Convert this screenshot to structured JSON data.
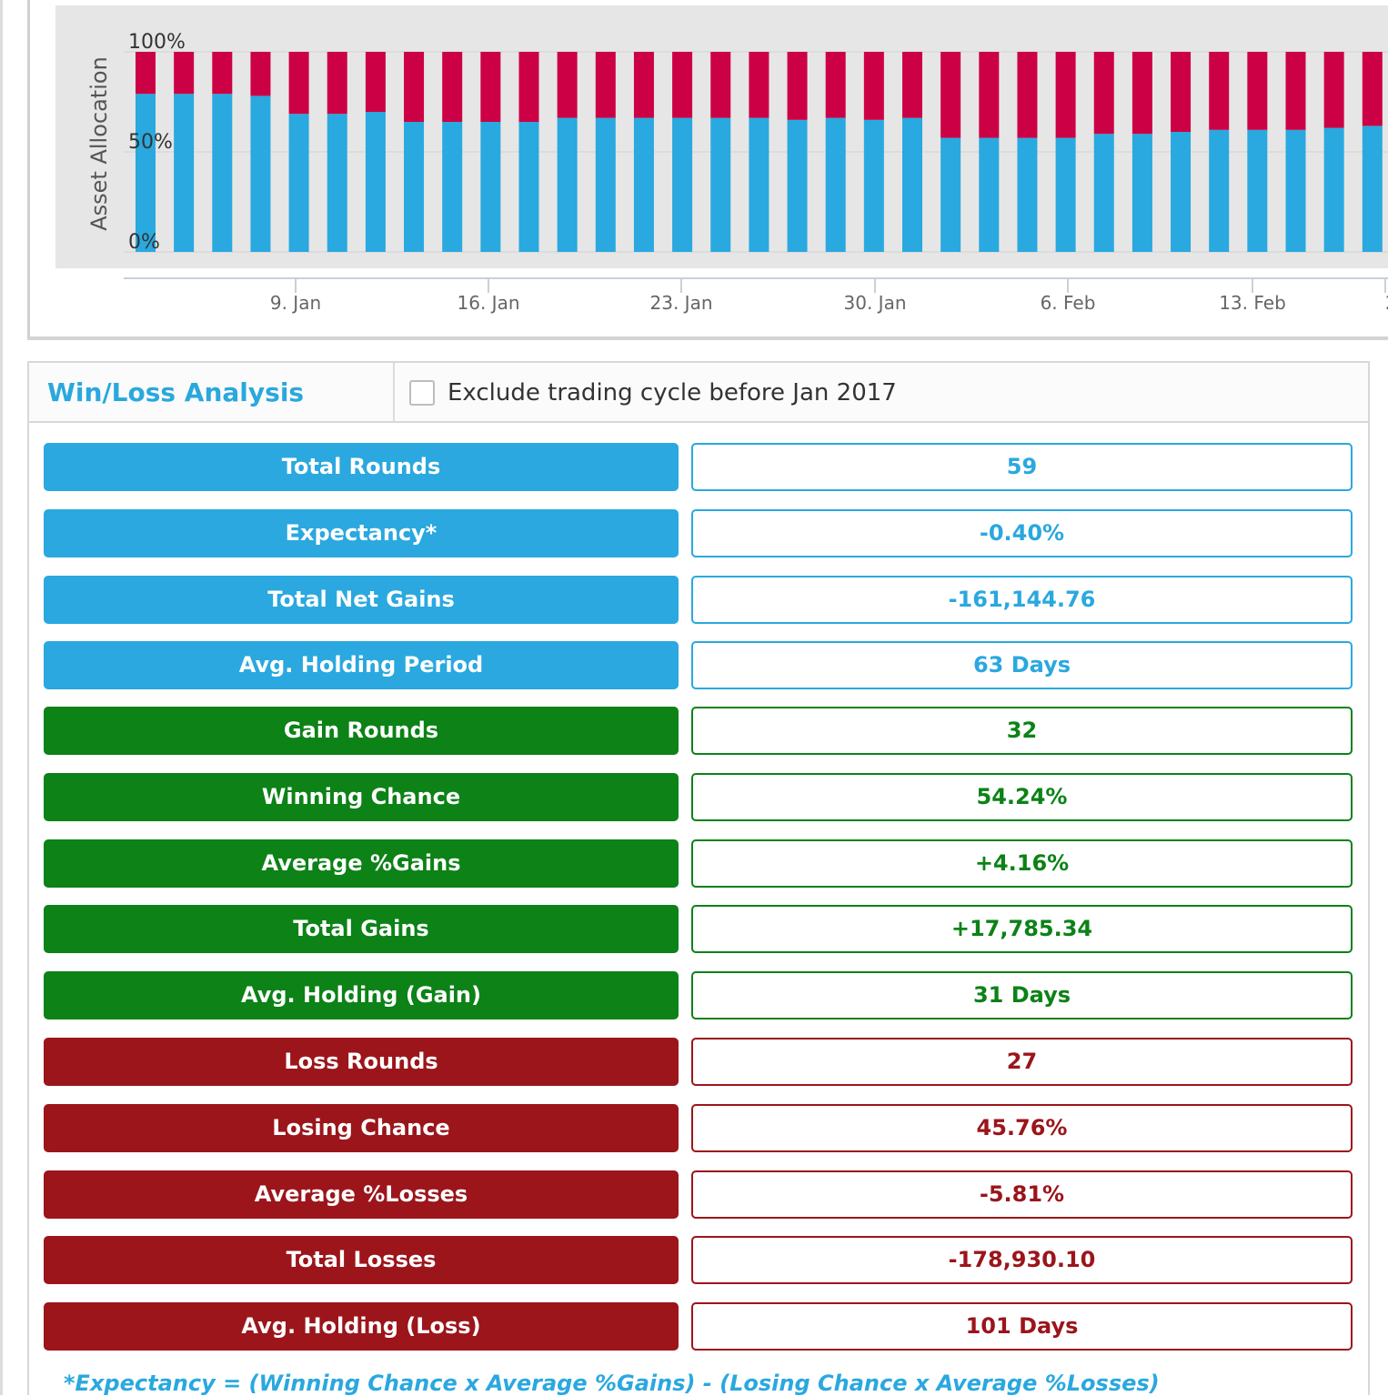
{
  "chart_data": {
    "type": "bar",
    "stacked": true,
    "ylabel": "Asset Allocation",
    "yticks": [
      "100%",
      "50%",
      "0%"
    ],
    "ylim": [
      0,
      100
    ],
    "xticks": [
      "9. Jan",
      "16. Jan",
      "23. Jan",
      "30. Jan",
      "6. Feb",
      "13. Feb",
      "2"
    ],
    "grid": true,
    "series": [
      {
        "color": "#29a9df",
        "values": [
          79,
          79,
          79,
          78,
          69,
          69,
          70,
          65,
          65,
          65,
          65,
          67,
          67,
          67,
          67,
          67,
          67,
          66,
          67,
          66,
          67,
          57,
          57,
          57,
          57,
          59,
          59,
          60,
          61,
          61,
          61,
          62,
          63
        ]
      },
      {
        "color": "#cc0044",
        "values": [
          21,
          21,
          21,
          22,
          31,
          31,
          30,
          35,
          35,
          35,
          35,
          33,
          33,
          33,
          33,
          33,
          33,
          34,
          33,
          34,
          33,
          43,
          43,
          43,
          43,
          41,
          41,
          40,
          39,
          39,
          39,
          38,
          37
        ]
      }
    ]
  },
  "winloss": {
    "title": "Win/Loss Analysis",
    "exclude_label": "Exclude trading cycle before Jan 2017",
    "exclude_checked": false,
    "rows": [
      {
        "label": "Total Rounds",
        "value": "59",
        "group": "blue"
      },
      {
        "label": "Expectancy*",
        "value": "-0.40%",
        "group": "blue"
      },
      {
        "label": "Total Net Gains",
        "value": "-161,144.76",
        "group": "blue"
      },
      {
        "label": "Avg. Holding Period",
        "value": "63 Days",
        "group": "blue"
      },
      {
        "label": "Gain Rounds",
        "value": "32",
        "group": "green"
      },
      {
        "label": "Winning Chance",
        "value": "54.24%",
        "group": "green"
      },
      {
        "label": "Average %Gains",
        "value": "+4.16%",
        "group": "green"
      },
      {
        "label": "Total Gains",
        "value": "+17,785.34",
        "group": "green"
      },
      {
        "label": "Avg. Holding (Gain)",
        "value": "31 Days",
        "group": "green"
      },
      {
        "label": "Loss Rounds",
        "value": "27",
        "group": "red"
      },
      {
        "label": "Losing Chance",
        "value": "45.76%",
        "group": "red"
      },
      {
        "label": "Average %Losses",
        "value": "-5.81%",
        "group": "red"
      },
      {
        "label": "Total Losses",
        "value": "-178,930.10",
        "group": "red"
      },
      {
        "label": "Avg. Holding (Loss)",
        "value": "101 Days",
        "group": "red"
      }
    ],
    "footnote": "*Expectancy = (Winning Chance x Average %Gains) - (Losing Chance x Average %Losses)"
  },
  "colors": {
    "blue": "#2aa8df",
    "green": "#0c8217",
    "red": "#9b151b"
  }
}
